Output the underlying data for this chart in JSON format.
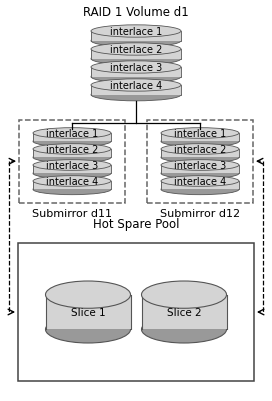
{
  "title": "RAID 1 Volume d1",
  "top_stack_labels": [
    "interlace 1",
    "interlace 2",
    "interlace 3",
    "interlace 4"
  ],
  "left_stack_labels": [
    "interlace 1",
    "interlace 2",
    "interlace 3",
    "interlace 4"
  ],
  "right_stack_labels": [
    "interlace 1",
    "interlace 2",
    "interlace 3",
    "interlace 4"
  ],
  "submirror_left_label": "Submirror d11",
  "submirror_right_label": "Submirror d12",
  "hot_spare_title": "Hot Spare Pool",
  "slice_labels": [
    "Slice 1",
    "Slice 2"
  ],
  "bg_color": "#ffffff",
  "ellipse_fill": "#d4d4d4",
  "ellipse_dark": "#999999",
  "cylinder_fill": "#d4d4d4",
  "cylinder_dark": "#999999",
  "dashed_box_color": "#666666",
  "solid_box_color": "#444444",
  "text_color": "#000000",
  "title_fontsize": 8.5,
  "label_fontsize": 7.0,
  "sublabel_fontsize": 8.0,
  "fig_w": 2.72,
  "fig_h": 4.02,
  "dpi": 100
}
